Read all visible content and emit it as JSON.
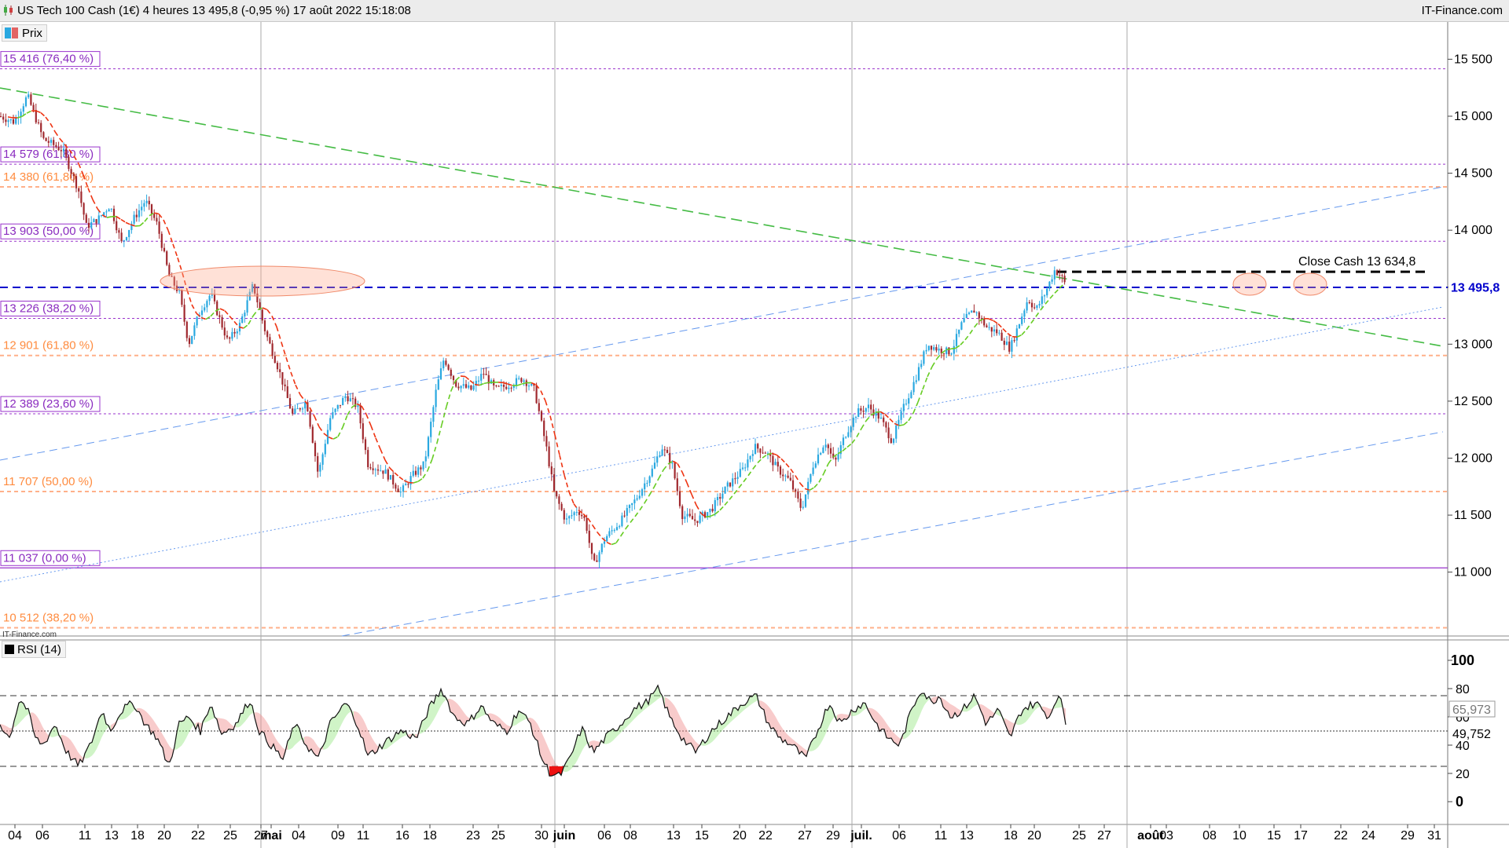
{
  "header": {
    "title": "US Tech 100 Cash (1€) 4 heures 13 495,8 (-0,95 %) 17 août 2022 15:18:08",
    "brand": "IT-Finance.com"
  },
  "legend": {
    "price": "Prix",
    "rsi": "RSI (14)",
    "watermark": "IT-Finance.com"
  },
  "colors": {
    "up": "#29a8e0",
    "down": "#a0282e",
    "fibPurple": "#9933cc",
    "fibOrange": "#ff8c40",
    "trendGreen": "#44bb44",
    "channelBlue": "#6699ee",
    "current": "#0000cc"
  },
  "chart_data": [
    {
      "type": "candlestick",
      "title": "US Tech 100 Cash (1€) 4 heures",
      "ylim": [
        10400,
        15700
      ],
      "y_ticks": [
        11000,
        11500,
        12000,
        12500,
        13000,
        13500,
        14000,
        14500,
        15000,
        15500
      ],
      "y_tick_labels": [
        "11 000",
        "11 500",
        "12 000",
        "12 500",
        "13 000",
        "13 500",
        "14 000",
        "14 500",
        "15 000",
        "15 500"
      ],
      "x_labels": [
        "04",
        "06",
        "11",
        "13",
        "18",
        "20",
        "22",
        "25",
        "27",
        "mai",
        "04",
        "09",
        "11",
        "16",
        "18",
        "23",
        "25",
        "30",
        "juin",
        "06",
        "08",
        "13",
        "15",
        "20",
        "22",
        "27",
        "29",
        "juil.",
        "06",
        "11",
        "13",
        "18",
        "20",
        "25",
        "27",
        "août",
        "03",
        "08",
        "10",
        "15",
        "17",
        "22",
        "24",
        "29",
        "31"
      ],
      "last_price": 13495.8,
      "last_price_label": "13 495,8",
      "close_annotation": "Close Cash 13 634,8",
      "close_level": 13634.8,
      "path_anchors": [
        [
          0,
          15000
        ],
        [
          18,
          14950
        ],
        [
          35,
          15180
        ],
        [
          55,
          14800
        ],
        [
          80,
          14700
        ],
        [
          100,
          14350
        ],
        [
          110,
          14030
        ],
        [
          125,
          14100
        ],
        [
          140,
          14220
        ],
        [
          155,
          13880
        ],
        [
          170,
          14100
        ],
        [
          185,
          14260
        ],
        [
          200,
          14050
        ],
        [
          215,
          13600
        ],
        [
          228,
          13450
        ],
        [
          240,
          13000
        ],
        [
          255,
          13300
        ],
        [
          268,
          13440
        ],
        [
          290,
          13020
        ],
        [
          305,
          13170
        ],
        [
          322,
          13520
        ],
        [
          338,
          13100
        ],
        [
          355,
          12770
        ],
        [
          372,
          12380
        ],
        [
          390,
          12500
        ],
        [
          405,
          11850
        ],
        [
          420,
          12350
        ],
        [
          440,
          12550
        ],
        [
          455,
          12450
        ],
        [
          468,
          11950
        ],
        [
          490,
          11880
        ],
        [
          510,
          11700
        ],
        [
          525,
          11850
        ],
        [
          540,
          11950
        ],
        [
          555,
          12600
        ],
        [
          565,
          12880
        ],
        [
          580,
          12650
        ],
        [
          600,
          12600
        ],
        [
          615,
          12750
        ],
        [
          630,
          12600
        ],
        [
          650,
          12650
        ],
        [
          665,
          12700
        ],
        [
          680,
          12600
        ],
        [
          695,
          12100
        ],
        [
          705,
          11700
        ],
        [
          720,
          11450
        ],
        [
          735,
          11550
        ],
        [
          745,
          11450
        ],
        [
          755,
          11050
        ],
        [
          770,
          11300
        ],
        [
          790,
          11450
        ],
        [
          810,
          11650
        ],
        [
          830,
          11900
        ],
        [
          842,
          12100
        ],
        [
          855,
          11950
        ],
        [
          868,
          11500
        ],
        [
          885,
          11450
        ],
        [
          905,
          11550
        ],
        [
          925,
          11750
        ],
        [
          945,
          11900
        ],
        [
          960,
          12100
        ],
        [
          975,
          12050
        ],
        [
          990,
          11900
        ],
        [
          1005,
          11800
        ],
        [
          1020,
          11550
        ],
        [
          1035,
          11950
        ],
        [
          1050,
          12150
        ],
        [
          1062,
          11950
        ],
        [
          1075,
          12200
        ],
        [
          1090,
          12400
        ],
        [
          1105,
          12450
        ],
        [
          1120,
          12350
        ],
        [
          1135,
          12150
        ],
        [
          1150,
          12450
        ],
        [
          1165,
          12700
        ],
        [
          1180,
          13000
        ],
        [
          1195,
          12950
        ],
        [
          1210,
          12930
        ],
        [
          1225,
          13200
        ],
        [
          1240,
          13300
        ],
        [
          1255,
          13150
        ],
        [
          1270,
          13100
        ],
        [
          1285,
          12960
        ],
        [
          1295,
          13150
        ],
        [
          1308,
          13400
        ],
        [
          1318,
          13300
        ],
        [
          1330,
          13450
        ],
        [
          1342,
          13650
        ],
        [
          1350,
          13600
        ],
        [
          1357,
          13500
        ]
      ],
      "rsi": {
        "title": "RSI (14)",
        "ylim": [
          -5,
          108
        ],
        "y_ticks": [
          0,
          20,
          40,
          60,
          80,
          100
        ],
        "levels": [
          75,
          25,
          50
        ],
        "last_values": [
          "65,973",
          "49,752"
        ],
        "path_anchors": [
          [
            0,
            55
          ],
          [
            12,
            45
          ],
          [
            25,
            73
          ],
          [
            35,
            65
          ],
          [
            45,
            45
          ],
          [
            55,
            40
          ],
          [
            70,
            55
          ],
          [
            85,
            35
          ],
          [
            100,
            25
          ],
          [
            115,
            40
          ],
          [
            130,
            65
          ],
          [
            140,
            50
          ],
          [
            155,
            65
          ],
          [
            170,
            70
          ],
          [
            185,
            55
          ],
          [
            200,
            45
          ],
          [
            215,
            25
          ],
          [
            228,
            55
          ],
          [
            240,
            60
          ],
          [
            255,
            50
          ],
          [
            268,
            70
          ],
          [
            282,
            48
          ],
          [
            300,
            55
          ],
          [
            318,
            72
          ],
          [
            330,
            50
          ],
          [
            345,
            40
          ],
          [
            360,
            30
          ],
          [
            375,
            55
          ],
          [
            390,
            40
          ],
          [
            405,
            30
          ],
          [
            420,
            55
          ],
          [
            440,
            70
          ],
          [
            455,
            55
          ],
          [
            468,
            32
          ],
          [
            490,
            42
          ],
          [
            510,
            50
          ],
          [
            530,
            45
          ],
          [
            545,
            65
          ],
          [
            562,
            80
          ],
          [
            578,
            60
          ],
          [
            595,
            55
          ],
          [
            612,
            68
          ],
          [
            628,
            55
          ],
          [
            645,
            50
          ],
          [
            660,
            65
          ],
          [
            675,
            55
          ],
          [
            690,
            30
          ],
          [
            700,
            20
          ],
          [
            712,
            18
          ],
          [
            725,
            30
          ],
          [
            740,
            52
          ],
          [
            755,
            35
          ],
          [
            770,
            45
          ],
          [
            790,
            55
          ],
          [
            805,
            65
          ],
          [
            822,
            70
          ],
          [
            838,
            80
          ],
          [
            852,
            60
          ],
          [
            868,
            45
          ],
          [
            885,
            35
          ],
          [
            905,
            50
          ],
          [
            925,
            60
          ],
          [
            945,
            70
          ],
          [
            962,
            75
          ],
          [
            978,
            55
          ],
          [
            992,
            45
          ],
          [
            1008,
            40
          ],
          [
            1025,
            30
          ],
          [
            1040,
            50
          ],
          [
            1055,
            70
          ],
          [
            1070,
            55
          ],
          [
            1085,
            65
          ],
          [
            1100,
            70
          ],
          [
            1115,
            55
          ],
          [
            1130,
            45
          ],
          [
            1145,
            40
          ],
          [
            1160,
            65
          ],
          [
            1172,
            80
          ],
          [
            1185,
            70
          ],
          [
            1195,
            75
          ],
          [
            1210,
            60
          ],
          [
            1225,
            65
          ],
          [
            1240,
            75
          ],
          [
            1255,
            55
          ],
          [
            1270,
            65
          ],
          [
            1285,
            45
          ],
          [
            1300,
            65
          ],
          [
            1318,
            70
          ],
          [
            1335,
            60
          ],
          [
            1345,
            75
          ],
          [
            1352,
            68
          ],
          [
            1358,
            50
          ]
        ]
      },
      "levels": [
        {
          "price": 15416,
          "label": "15 416 (76,40 %)",
          "group": "purple"
        },
        {
          "price": 14579,
          "label": "14 579 (61,80 %)",
          "group": "purple"
        },
        {
          "price": 14380,
          "label": "14 380 (61,80 %)",
          "group": "orange"
        },
        {
          "price": 13903,
          "label": "13 903 (50,00 %)",
          "group": "purple"
        },
        {
          "price": 13226,
          "label": "13 226 (38,20 %)",
          "group": "purple"
        },
        {
          "price": 12901,
          "label": "12 901 (61,80 %)",
          "group": "orange"
        },
        {
          "price": 12389,
          "label": "12 389 (23,60 %)",
          "group": "purple"
        },
        {
          "price": 11707,
          "label": "11 707 (50,00 %)",
          "group": "orange"
        },
        {
          "price": 11037,
          "label": "11 037 (0,00 %)",
          "group": "purpleSolid"
        },
        {
          "price": 10512,
          "label": "10 512 (38,20 %)",
          "group": "orange"
        }
      ]
    }
  ]
}
